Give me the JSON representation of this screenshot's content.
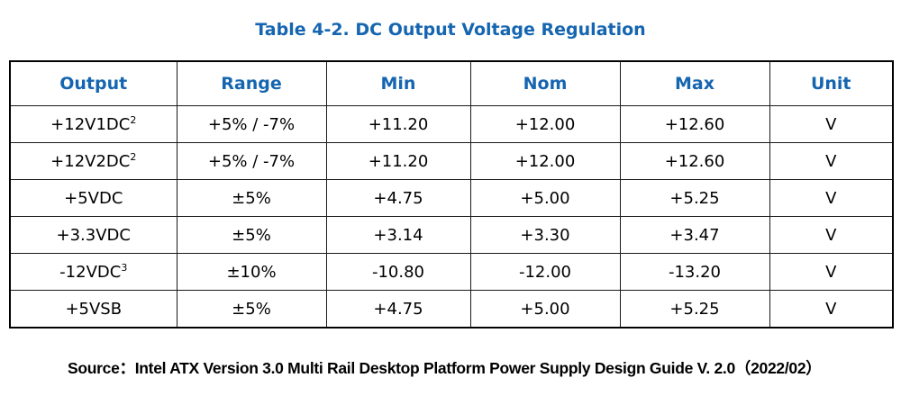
{
  "title": "Table 4-2. DC Output Voltage Regulation",
  "colors": {
    "accent_blue": "#1565b0",
    "text": "#000000",
    "border": "#000000",
    "background": "#ffffff"
  },
  "table": {
    "headers": {
      "output": "Output",
      "range": "Range",
      "min": "Min",
      "nom": "Nom",
      "max": "Max",
      "unit": "Unit"
    },
    "rows": [
      {
        "output": "+12V1DC",
        "output_sup": "2",
        "range": "+5% / -7%",
        "min": "+11.20",
        "nom": "+12.00",
        "max": "+12.60",
        "unit": "V"
      },
      {
        "output": "+12V2DC",
        "output_sup": "2",
        "range": "+5% / -7%",
        "min": "+11.20",
        "nom": "+12.00",
        "max": "+12.60",
        "unit": "V"
      },
      {
        "output": "+5VDC",
        "output_sup": "",
        "range": "±5%",
        "min": "+4.75",
        "nom": "+5.00",
        "max": "+5.25",
        "unit": "V"
      },
      {
        "output": "+3.3VDC",
        "output_sup": "",
        "range": "±5%",
        "min": "+3.14",
        "nom": "+3.30",
        "max": "+3.47",
        "unit": "V"
      },
      {
        "output": "-12VDC",
        "output_sup": "3",
        "range": "±10%",
        "min": "-10.80",
        "nom": "-12.00",
        "max": "-13.20",
        "unit": "V"
      },
      {
        "output": "+5VSB",
        "output_sup": "",
        "range": "±5%",
        "min": "+4.75",
        "nom": "+5.00",
        "max": "+5.25",
        "unit": "V"
      }
    ]
  },
  "chart_data": {
    "type": "table",
    "title": "Table 4-2. DC Output Voltage Regulation",
    "columns": [
      "Output",
      "Range",
      "Min",
      "Nom",
      "Max",
      "Unit"
    ],
    "rows": [
      [
        "+12V1DC²",
        "+5% / -7%",
        "+11.20",
        "+12.00",
        "+12.60",
        "V"
      ],
      [
        "+12V2DC²",
        "+5% / -7%",
        "+11.20",
        "+12.00",
        "+12.60",
        "V"
      ],
      [
        "+5VDC",
        "±5%",
        "+4.75",
        "+5.00",
        "+5.25",
        "V"
      ],
      [
        "+3.3VDC",
        "±5%",
        "+3.14",
        "+3.30",
        "+3.47",
        "V"
      ],
      [
        "-12VDC³",
        "±10%",
        "-10.80",
        "-12.00",
        "-13.20",
        "V"
      ],
      [
        "+5VSB",
        "±5%",
        "+4.75",
        "+5.00",
        "+5.25",
        "V"
      ]
    ]
  },
  "source_note": "Source：Intel ATX Version 3.0 Multi Rail Desktop Platform Power Supply Design Guide V. 2.0（2022/02）"
}
